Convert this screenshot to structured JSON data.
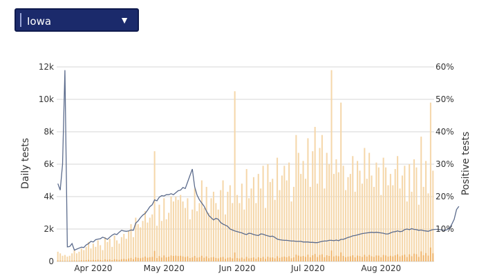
{
  "selector": {
    "value": "Iowa"
  },
  "chart_data": {
    "type": "bar",
    "ylabel": "Daily tests",
    "y2label": "Positive tests",
    "ylim": [
      0,
      12000
    ],
    "y2lim": [
      0,
      60
    ],
    "y_ticks": [
      "0",
      "2k",
      "4k",
      "6k",
      "8k",
      "10k",
      "12k"
    ],
    "y2_ticks": [
      "10%",
      "20%",
      "30%",
      "40%",
      "50%",
      "60%"
    ],
    "x_ticks": [
      "Apr 2020",
      "May 2020",
      "Jun 2020",
      "Jul 2020",
      "Aug 2020"
    ],
    "grid": true,
    "colors": {
      "total": "#f5d7aa",
      "positive": "#f0b56b",
      "line": "#5b6b8c"
    },
    "x_start": "2020-03-17",
    "series": [
      {
        "name": "",
        "kind": "bar",
        "values": [
          600,
          500,
          350,
          400,
          300,
          350,
          500,
          700,
          500,
          600,
          800,
          700,
          900,
          1200,
          800,
          1100,
          900,
          1300,
          1000,
          700,
          1500,
          1200,
          1400,
          900,
          1600,
          1300,
          1100,
          1500,
          1700,
          1400,
          1900,
          2300,
          1500,
          2700,
          2300,
          2100,
          2500,
          3100,
          2400,
          2700,
          2900,
          6800,
          2200,
          3500,
          2500,
          3900,
          2600,
          3000,
          4000,
          3700,
          4000,
          3800,
          4100,
          3700,
          3300,
          3900,
          2600,
          3200,
          4500,
          3100,
          3600,
          5000,
          3300,
          4600,
          3000,
          3900,
          4300,
          3600,
          3200,
          4400,
          5000,
          2900,
          4300,
          4700,
          3600,
          10500,
          4100,
          3600,
          4800,
          3200,
          5700,
          3900,
          4500,
          5200,
          3600,
          5400,
          4500,
          5900,
          3300,
          6000,
          4900,
          5100,
          3800,
          6400,
          4400,
          5300,
          5900,
          5000,
          6100,
          3700,
          4600,
          7800,
          6700,
          5400,
          6200,
          5100,
          7600,
          4600,
          6800,
          8300,
          4800,
          7000,
          7800,
          4500,
          6700,
          6000,
          11800,
          5400,
          6300,
          5500,
          9800,
          5900,
          4400,
          5200,
          5400,
          6500,
          4300,
          6200,
          5600,
          4800,
          7000,
          5100,
          6700,
          5300,
          4600,
          6100,
          5800,
          4100,
          6400,
          5800,
          4700,
          5400,
          4700,
          5700,
          6500,
          4500,
          5300,
          5900,
          3700,
          6000,
          4300,
          6300,
          5800,
          3500,
          7700,
          4600,
          6200,
          4200,
          9800,
          5600
        ]
      },
      {
        "name": "",
        "kind": "bar",
        "values": [
          60,
          50,
          40,
          40,
          35,
          40,
          50,
          60,
          50,
          55,
          70,
          60,
          80,
          100,
          70,
          95,
          80,
          110,
          90,
          60,
          130,
          100,
          120,
          80,
          140,
          120,
          100,
          140,
          160,
          130,
          180,
          220,
          140,
          260,
          220,
          200,
          240,
          300,
          230,
          260,
          280,
          650,
          210,
          330,
          240,
          370,
          250,
          290,
          370,
          340,
          360,
          330,
          350,
          310,
          270,
          310,
          210,
          250,
          340,
          230,
          260,
          350,
          230,
          310,
          200,
          250,
          270,
          220,
          190,
          250,
          280,
          160,
          230,
          250,
          190,
          550,
          210,
          180,
          240,
          160,
          280,
          190,
          220,
          250,
          170,
          260,
          210,
          280,
          160,
          290,
          240,
          250,
          190,
          320,
          220,
          270,
          300,
          260,
          320,
          200,
          250,
          420,
          360,
          300,
          340,
          280,
          420,
          260,
          380,
          460,
          270,
          400,
          440,
          260,
          380,
          340,
          670,
          310,
          360,
          320,
          560,
          340,
          260,
          300,
          320,
          380,
          250,
          360,
          330,
          280,
          410,
          300,
          400,
          320,
          280,
          370,
          360,
          260,
          400,
          370,
          300,
          350,
          310,
          380,
          440,
          310,
          370,
          420,
          270,
          440,
          320,
          480,
          450,
          280,
          620,
          380,
          520,
          360,
          860,
          500
        ]
      },
      {
        "name": "",
        "kind": "line",
        "values": [
          24,
          22,
          30,
          59,
          4.5,
          4.6,
          5.5,
          3.5,
          3.8,
          4.1,
          4.4,
          4.3,
          5.1,
          5.5,
          6.2,
          6.0,
          6.7,
          6.9,
          7.0,
          7.5,
          7.2,
          6.8,
          7.5,
          8.1,
          8.5,
          8.3,
          9.0,
          9.6,
          9.4,
          9.3,
          9.4,
          9.7,
          9.6,
          11.8,
          12.5,
          13.5,
          14.3,
          14.8,
          15.8,
          16.9,
          17.5,
          19.0,
          18.7,
          19.8,
          20.3,
          20.2,
          20.6,
          20.6,
          20.9,
          20.6,
          21.2,
          21.8,
          22.0,
          22.8,
          22.5,
          24.5,
          26.5,
          28.5,
          23.0,
          20.5,
          19.0,
          18.0,
          17.0,
          15.5,
          14.2,
          13.5,
          12.8,
          13.3,
          13.0,
          12.0,
          11.5,
          11.2,
          10.8,
          10.0,
          9.7,
          9.4,
          9.2,
          9.0,
          8.8,
          8.5,
          8.3,
          8.7,
          8.6,
          8.3,
          8.1,
          8.0,
          8.5,
          8.4,
          8.1,
          7.9,
          7.7,
          7.8,
          7.4,
          6.9,
          6.7,
          6.6,
          6.5,
          6.5,
          6.4,
          6.3,
          6.3,
          6.2,
          6.2,
          6.2,
          6.0,
          6.0,
          6.0,
          5.9,
          5.9,
          5.8,
          5.8,
          6.0,
          6.2,
          6.3,
          6.3,
          6.5,
          6.5,
          6.4,
          6.6,
          6.4,
          6.8,
          6.8,
          7.1,
          7.4,
          7.6,
          7.9,
          8.0,
          8.2,
          8.4,
          8.6,
          8.7,
          8.8,
          8.9,
          9.0,
          8.9,
          9.0,
          8.9,
          8.8,
          8.7,
          8.5,
          8.5,
          8.8,
          9.1,
          9.2,
          9.4,
          9.2,
          9.3,
          9.8,
          10.0,
          9.8,
          10.1,
          9.9,
          9.8,
          9.6,
          9.7,
          9.5,
          9.4,
          9.3,
          9.6,
          9.8,
          9.9,
          9.9,
          9.8,
          9.7,
          9.6,
          9.8,
          10.2,
          11.5,
          13.0,
          16.0,
          17.0
        ]
      }
    ]
  }
}
